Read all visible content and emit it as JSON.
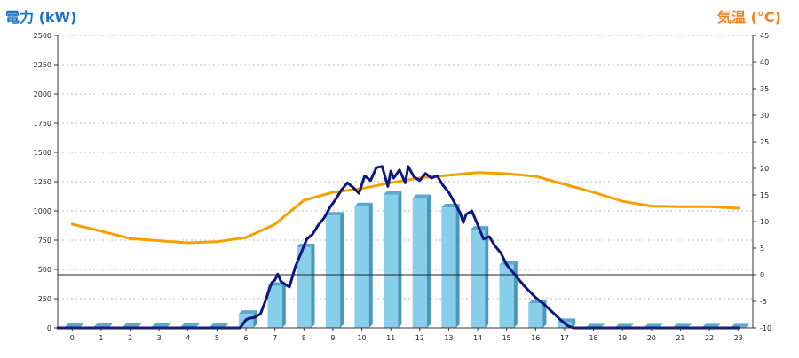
{
  "chart_data": {
    "type": "bar-line-combo",
    "ylabel_left": "電力 (kW)",
    "ylabel_right": "気温 (°C)",
    "categories": [
      "0",
      "1",
      "2",
      "3",
      "4",
      "5",
      "6",
      "7",
      "8",
      "9",
      "10",
      "11",
      "12",
      "13",
      "14",
      "15",
      "16",
      "17",
      "18",
      "19",
      "20",
      "21",
      "22",
      "23"
    ],
    "y_left": {
      "range": [
        0,
        2500
      ],
      "ticks": [
        "0",
        "250",
        "500",
        "750",
        "1000",
        "1250",
        "1500",
        "1750",
        "2000",
        "2250",
        "2500"
      ]
    },
    "y_right": {
      "range": [
        -10,
        45
      ],
      "ticks": [
        "-10",
        "-5",
        "0",
        "5",
        "10",
        "15",
        "20",
        "25",
        "30",
        "35",
        "40",
        "45"
      ]
    },
    "grid": true,
    "bars": {
      "name": "",
      "color": "#87ceeb",
      "axis": "left",
      "values": [
        10,
        10,
        10,
        10,
        10,
        10,
        120,
        360,
        690,
        960,
        1040,
        1140,
        1110,
        1030,
        840,
        540,
        210,
        50,
        5,
        5,
        5,
        5,
        5,
        5
      ]
    },
    "power_line": {
      "name": "",
      "color": "#0d1580",
      "axis": "left",
      "x": [
        0,
        5.5,
        5.8,
        6.0,
        6.1,
        6.3,
        6.5,
        6.7,
        6.8,
        6.9,
        7.0,
        7.1,
        7.2,
        7.3,
        7.5,
        7.7,
        7.9,
        8.1,
        8.3,
        8.5,
        8.7,
        8.9,
        9.1,
        9.3,
        9.5,
        9.7,
        9.9,
        10.1,
        10.3,
        10.5,
        10.7,
        10.9,
        11.0,
        11.1,
        11.3,
        11.5,
        11.6,
        11.8,
        12.0,
        12.2,
        12.4,
        12.6,
        12.8,
        13.0,
        13.2,
        13.4,
        13.5,
        13.6,
        13.8,
        14.0,
        14.2,
        14.4,
        14.6,
        14.8,
        15.0,
        15.2,
        15.4,
        15.6,
        15.8,
        16.0,
        16.3,
        16.6,
        16.9,
        17.1,
        17.3,
        23.0
      ],
      "y": [
        0,
        0,
        0,
        70,
        80,
        90,
        120,
        250,
        330,
        390,
        410,
        460,
        400,
        380,
        350,
        520,
        640,
        760,
        800,
        880,
        940,
        1030,
        1100,
        1180,
        1240,
        1200,
        1150,
        1300,
        1260,
        1370,
        1380,
        1210,
        1340,
        1280,
        1350,
        1240,
        1380,
        1290,
        1260,
        1320,
        1280,
        1300,
        1220,
        1160,
        1070,
        980,
        900,
        970,
        1000,
        880,
        760,
        780,
        700,
        640,
        540,
        480,
        420,
        360,
        310,
        260,
        200,
        130,
        60,
        20,
        0,
        0
      ]
    },
    "temperature_line": {
      "name": "",
      "color": "#f5a000",
      "axis": "right",
      "x": [
        0,
        1,
        2,
        3,
        4,
        5,
        6,
        7,
        8,
        9,
        10,
        11,
        12,
        13,
        14,
        15,
        16,
        17,
        18,
        19,
        20,
        21,
        22,
        23
      ],
      "y": [
        9.5,
        8.2,
        6.8,
        6.4,
        6.0,
        6.2,
        7.0,
        9.5,
        14.0,
        15.5,
        16.2,
        17.3,
        18.2,
        18.7,
        19.2,
        19.0,
        18.5,
        17.0,
        15.5,
        13.8,
        12.9,
        12.8,
        12.8,
        12.5
      ]
    }
  }
}
